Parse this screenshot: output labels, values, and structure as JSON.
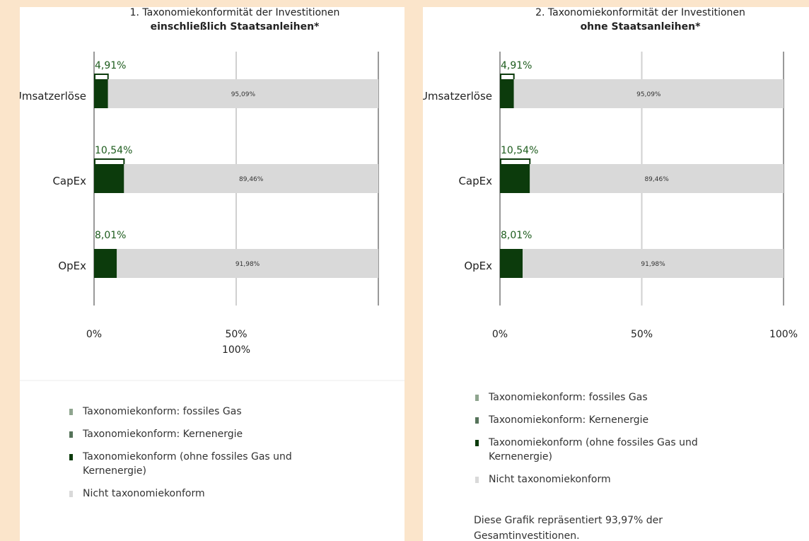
{
  "chart_data": [
    {
      "type": "bar",
      "orientation": "horizontal",
      "stacked": true,
      "title": "1. Taxonomiekonformität der Investitionen",
      "subtitle": "einschließlich Staatsanleihen*",
      "categories": [
        "Umsatzerlöse",
        "CapEx",
        "OpEx"
      ],
      "xlim": [
        0,
        100
      ],
      "xticks": [
        {
          "value": 0,
          "label": "0%"
        },
        {
          "value": 50,
          "label": "50%"
        },
        {
          "value": 100,
          "label": "100%"
        }
      ],
      "series": [
        {
          "name": "Taxonomiekonform: fossiles Gas",
          "color": "#8fa58f",
          "values": [
            null,
            null,
            null
          ]
        },
        {
          "name": "Taxonomiekonform: Kernenergie",
          "color": "#56735a",
          "values": [
            null,
            null,
            null
          ]
        },
        {
          "name": "Taxonomiekonform (ohne fossiles Gas und Kernenergie)",
          "color": "#0c3b0c",
          "values": [
            4.91,
            10.54,
            8.01
          ],
          "value_labels": [
            "4,91%",
            "10,54%",
            "8,01%"
          ]
        },
        {
          "name": "Nicht taxonomiekonform",
          "color": "#d9d9d9",
          "values": [
            95.09,
            89.46,
            91.98
          ],
          "value_labels": [
            "95,09%",
            "89,46%",
            "91,98%"
          ]
        }
      ]
    },
    {
      "type": "bar",
      "orientation": "horizontal",
      "stacked": true,
      "title": "2. Taxonomiekonformität der Investitionen",
      "subtitle": "ohne Staatsanleihen*",
      "categories": [
        "Umsatzerlöse",
        "CapEx",
        "OpEx"
      ],
      "xlim": [
        0,
        100
      ],
      "xticks": [
        {
          "value": 0,
          "label": "0%"
        },
        {
          "value": 50,
          "label": "50%"
        },
        {
          "value": 100,
          "label": "100%"
        }
      ],
      "series": [
        {
          "name": "Taxonomiekonform: fossiles Gas",
          "color": "#8fa58f",
          "values": [
            null,
            null,
            null
          ]
        },
        {
          "name": "Taxonomiekonform: Kernenergie",
          "color": "#56735a",
          "values": [
            null,
            null,
            null
          ]
        },
        {
          "name": "Taxonomiekonform (ohne fossiles Gas und Kernenergie)",
          "color": "#0c3b0c",
          "values": [
            4.91,
            10.54,
            8.01
          ],
          "value_labels": [
            "4,91%",
            "10,54%",
            "8,01%"
          ]
        },
        {
          "name": "Nicht taxonomiekonform",
          "color": "#d9d9d9",
          "values": [
            95.09,
            89.46,
            91.98
          ],
          "value_labels": [
            "95,09%",
            "89,46%",
            "91,98%"
          ]
        }
      ],
      "note": "Diese Grafik repräsentiert 93,97% der Gesamtinvestitionen."
    }
  ]
}
